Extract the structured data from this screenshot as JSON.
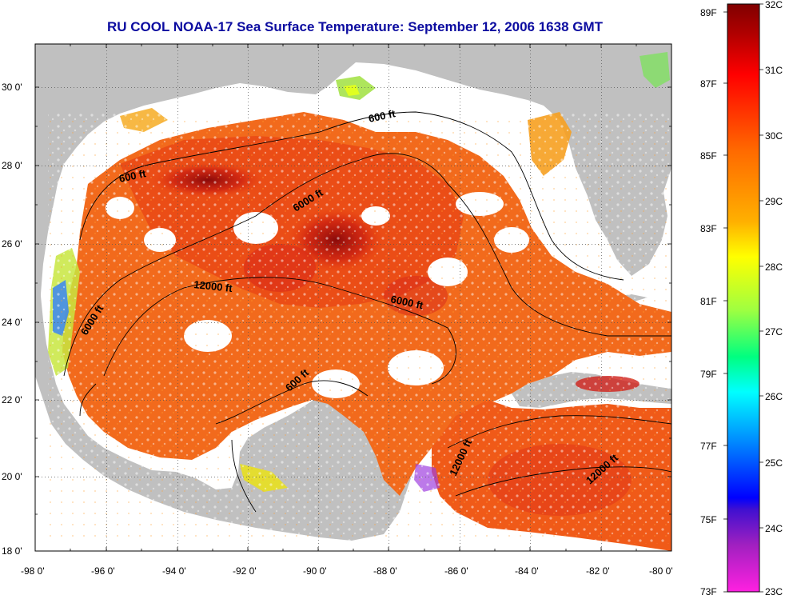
{
  "title": "RU COOL  NOAA-17  Sea Surface Temperature:  September 12, 2006 1638 GMT",
  "axes": {
    "longitude_ticks": [
      "-98 0'",
      "-96 0'",
      "-94 0'",
      "-92 0'",
      "-90 0'",
      "-88 0'",
      "-86 0'",
      "-84 0'",
      "-82 0'",
      "-80 0'"
    ],
    "latitude_ticks": [
      "30 0'",
      "28 0'",
      "26 0'",
      "24 0'",
      "22 0'",
      "20 0'",
      "18 0'"
    ],
    "lon_range": [
      -98,
      -80
    ],
    "lat_range": [
      18,
      31.3
    ],
    "grid": true
  },
  "contour_labels": [
    {
      "id": "600-north",
      "text": "600 ft"
    },
    {
      "id": "600-nw",
      "text": "600 ft"
    },
    {
      "id": "6000-center",
      "text": "6000 ft"
    },
    {
      "id": "12000-center",
      "text": "12000 ft"
    },
    {
      "id": "6000-east",
      "text": "6000 ft"
    },
    {
      "id": "6000-west",
      "text": "6000 ft"
    },
    {
      "id": "600-yucatan",
      "text": "600 ft"
    },
    {
      "id": "12000-caribbean-west",
      "text": "12000 ft"
    },
    {
      "id": "12000-caribbean-east",
      "text": "12000 ft"
    }
  ],
  "colorbar": {
    "fahrenheit": [
      "89F",
      "87F",
      "85F",
      "83F",
      "81F",
      "79F",
      "77F",
      "75F",
      "73F"
    ],
    "celsius": [
      "32C",
      "31C",
      "30C",
      "29C",
      "28C",
      "27C",
      "26C",
      "25C",
      "24C",
      "23C"
    ],
    "range_c": [
      23,
      32
    ],
    "range_f": [
      73,
      89
    ]
  },
  "colors": {
    "land": "#c0c0c0",
    "no_data": "#ffffff",
    "title": "#0c0ca0"
  }
}
